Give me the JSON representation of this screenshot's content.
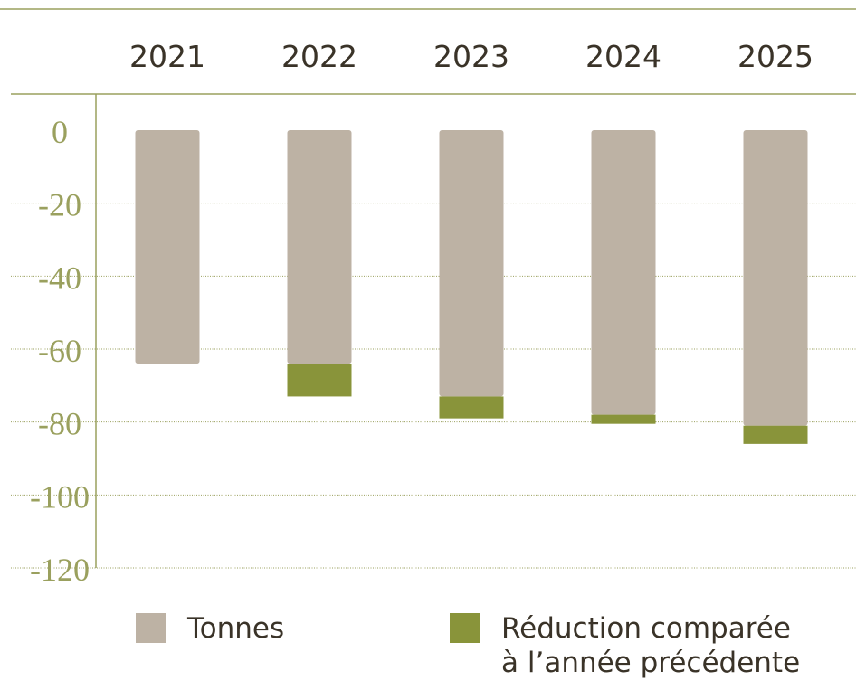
{
  "chart_data": {
    "type": "bar",
    "stacked": true,
    "categories": [
      "2021",
      "2022",
      "2023",
      "2024",
      "2025"
    ],
    "series": [
      {
        "name": "Tonnes",
        "color": "#bdb2a4",
        "values": [
          -64,
          -64,
          -73,
          -78,
          -81
        ]
      },
      {
        "name": "Réduction comparée à l’année précédente",
        "color": "#89943a",
        "values": [
          0,
          -9,
          -6,
          -2.5,
          -5
        ]
      }
    ],
    "ylim": [
      0,
      -120
    ],
    "yticks": [
      0,
      -20,
      -40,
      -60,
      -80,
      -100,
      -120
    ],
    "grid": true
  }
}
